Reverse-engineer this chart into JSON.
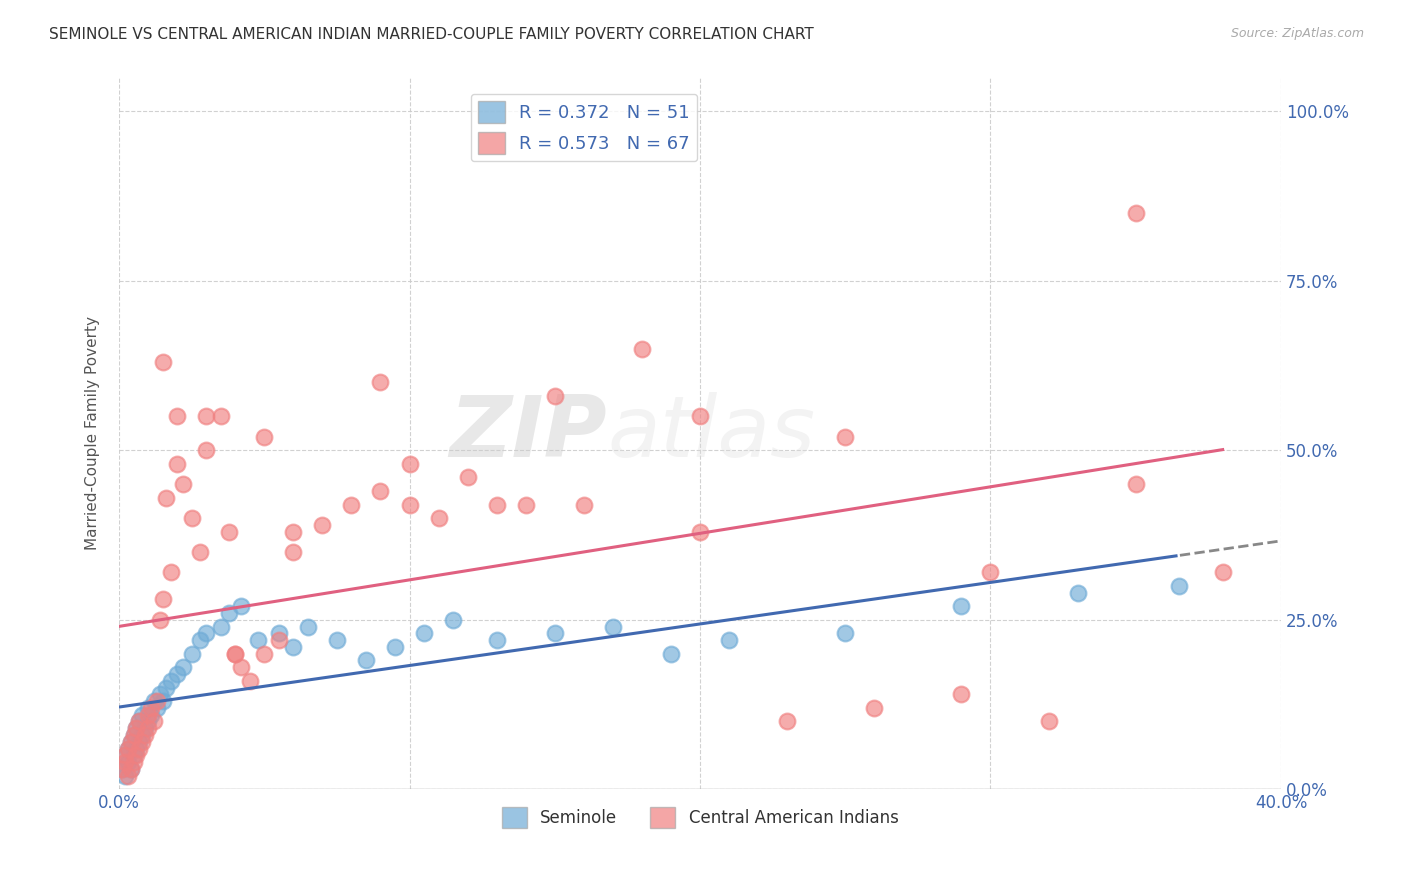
{
  "title": "SEMINOLE VS CENTRAL AMERICAN INDIAN MARRIED-COUPLE FAMILY POVERTY CORRELATION CHART",
  "source": "Source: ZipAtlas.com",
  "ylabel": "Married-Couple Family Poverty",
  "xlim": [
    0.0,
    0.4
  ],
  "ylim": [
    0.0,
    1.05
  ],
  "seminole_R": 0.372,
  "seminole_N": 51,
  "cai_R": 0.573,
  "cai_N": 67,
  "seminole_color": "#6fabd6",
  "cai_color": "#f08080",
  "seminole_line_color": "#4169b0",
  "cai_line_color": "#e06080",
  "background_color": "#ffffff",
  "grid_color": "#cccccc",
  "watermark_zip": "ZIP",
  "watermark_atlas": "atlas",
  "seminole_x": [
    0.001,
    0.002,
    0.002,
    0.003,
    0.003,
    0.004,
    0.004,
    0.005,
    0.005,
    0.006,
    0.006,
    0.007,
    0.007,
    0.008,
    0.008,
    0.009,
    0.01,
    0.01,
    0.011,
    0.012,
    0.013,
    0.014,
    0.015,
    0.016,
    0.018,
    0.02,
    0.022,
    0.025,
    0.028,
    0.03,
    0.035,
    0.038,
    0.042,
    0.048,
    0.055,
    0.06,
    0.065,
    0.075,
    0.085,
    0.095,
    0.105,
    0.115,
    0.13,
    0.15,
    0.17,
    0.19,
    0.21,
    0.25,
    0.29,
    0.33,
    0.365
  ],
  "seminole_y": [
    0.03,
    0.02,
    0.05,
    0.04,
    0.06,
    0.03,
    0.07,
    0.05,
    0.08,
    0.06,
    0.09,
    0.07,
    0.1,
    0.08,
    0.11,
    0.09,
    0.1,
    0.12,
    0.11,
    0.13,
    0.12,
    0.14,
    0.13,
    0.15,
    0.16,
    0.17,
    0.18,
    0.2,
    0.22,
    0.23,
    0.24,
    0.26,
    0.27,
    0.22,
    0.23,
    0.21,
    0.24,
    0.22,
    0.19,
    0.21,
    0.23,
    0.25,
    0.22,
    0.23,
    0.24,
    0.2,
    0.22,
    0.23,
    0.27,
    0.29,
    0.3
  ],
  "cai_x": [
    0.001,
    0.002,
    0.002,
    0.003,
    0.003,
    0.004,
    0.004,
    0.005,
    0.005,
    0.006,
    0.006,
    0.007,
    0.007,
    0.008,
    0.009,
    0.01,
    0.01,
    0.011,
    0.012,
    0.013,
    0.014,
    0.015,
    0.016,
    0.018,
    0.02,
    0.022,
    0.025,
    0.028,
    0.03,
    0.035,
    0.038,
    0.04,
    0.042,
    0.045,
    0.05,
    0.055,
    0.06,
    0.07,
    0.08,
    0.09,
    0.1,
    0.11,
    0.12,
    0.14,
    0.16,
    0.18,
    0.2,
    0.23,
    0.26,
    0.29,
    0.32,
    0.35,
    0.38,
    0.015,
    0.02,
    0.03,
    0.05,
    0.1,
    0.15,
    0.2,
    0.25,
    0.3,
    0.35,
    0.09,
    0.13,
    0.06,
    0.04
  ],
  "cai_y": [
    0.03,
    0.04,
    0.05,
    0.02,
    0.06,
    0.03,
    0.07,
    0.04,
    0.08,
    0.05,
    0.09,
    0.06,
    0.1,
    0.07,
    0.08,
    0.11,
    0.09,
    0.12,
    0.1,
    0.13,
    0.25,
    0.28,
    0.43,
    0.32,
    0.48,
    0.45,
    0.4,
    0.35,
    0.5,
    0.55,
    0.38,
    0.2,
    0.18,
    0.16,
    0.2,
    0.22,
    0.38,
    0.39,
    0.42,
    0.44,
    0.42,
    0.4,
    0.46,
    0.42,
    0.42,
    0.65,
    0.38,
    0.1,
    0.12,
    0.14,
    0.1,
    0.45,
    0.32,
    0.63,
    0.55,
    0.55,
    0.52,
    0.48,
    0.58,
    0.55,
    0.52,
    0.32,
    0.85,
    0.6,
    0.42,
    0.35,
    0.2
  ]
}
